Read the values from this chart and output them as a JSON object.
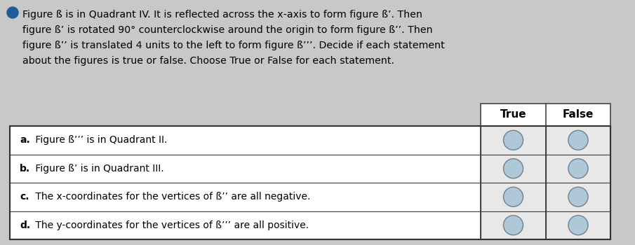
{
  "title_bullet_color": "#1f5c99",
  "title_text_line1": "Figure ß is in Quadrant IV. It is reflected across the x-axis to form figure ß’. Then",
  "title_text_line2": "figure ß’ is rotated 90° counterclockwise around the origin to form figure ß’’. Then",
  "title_text_line3": "figure ß’’ is translated 4 units to the left to form figure ß’’’. Decide if each statement",
  "title_text_line4": "about the figures is true or false. Choose True or False for each statement.",
  "col_headers": [
    "True",
    "False"
  ],
  "rows": [
    {
      "bold": "a.",
      "rest": " Figure ß’’’ is in Quadrant II."
    },
    {
      "bold": "b.",
      "rest": " Figure ß’ is in Quadrant III."
    },
    {
      "bold": "c.",
      "rest": " The x-coordinates for the vertices of ß’’ are all negative."
    },
    {
      "bold": "d.",
      "rest": " The y-coordinates for the vertices of ß’’’ are all positive."
    }
  ],
  "background_color": "#c8c8c8",
  "table_row_bg": "#e8e8e8",
  "header_bg": "#ffffff",
  "circle_face_color": "#aec8d8",
  "circle_edge_color": "#708090",
  "title_fontsize": 10.2,
  "row_fontsize": 10.0,
  "header_fontsize": 11.0
}
